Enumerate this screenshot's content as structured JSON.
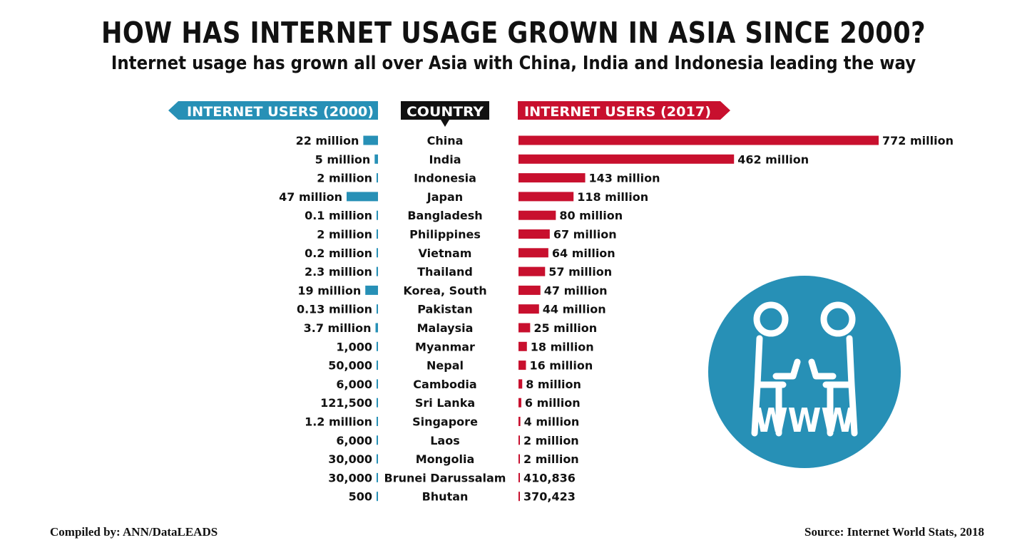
{
  "colors": {
    "users_2000": "#2790b6",
    "users_2017": "#c8102e",
    "country_header": "#111111",
    "icon": "#2790b6"
  },
  "header": {
    "title": "HOW HAS INTERNET USAGE GROWN IN ASIA SINCE 2000?",
    "subtitle": "Internet usage has grown all over Asia with China, India and Indonesia leading the way"
  },
  "footer": {
    "compiled_by": "Compiled by: ANN/DataLEADS",
    "source": "Source: Internet World Stats, 2018"
  },
  "icon_name": "www-users-icon",
  "icon_label": "WWW",
  "chart_data": {
    "type": "bar",
    "column_headers": {
      "left": "INTERNET USERS (2000)",
      "center": "COUNTRY",
      "right": "INTERNET USERS (2017)"
    },
    "unit": "million",
    "categories": [
      "China",
      "India",
      "Indonesia",
      "Japan",
      "Bangladesh",
      "Philippines",
      "Vietnam",
      "Thailand",
      "Korea, South",
      "Pakistan",
      "Malaysia",
      "Myanmar",
      "Nepal",
      "Cambodia",
      "Sri Lanka",
      "Singapore",
      "Laos",
      "Mongolia",
      "Brunei Darussalam",
      "Bhutan"
    ],
    "series": [
      {
        "name": "INTERNET USERS (2000)",
        "values": [
          22,
          5,
          2,
          47,
          0.1,
          2,
          0.2,
          2.3,
          19,
          0.13,
          3.7,
          0.001,
          0.05,
          0.006,
          0.1215,
          1.2,
          0.006,
          0.03,
          0.03,
          0.0005
        ],
        "labels": [
          "22 million",
          "5 million",
          "2 million",
          "47 million",
          "0.1 million",
          "2 million",
          "0.2 million",
          "2.3 million",
          "19 million",
          "0.13 million",
          "3.7 million",
          "1,000",
          "50,000",
          "6,000",
          "121,500",
          "1.2 million",
          "6,000",
          "30,000",
          "30,000",
          "500"
        ]
      },
      {
        "name": "INTERNET USERS (2017)",
        "values": [
          772,
          462,
          143,
          118,
          80,
          67,
          64,
          57,
          47,
          44,
          25,
          18,
          16,
          8,
          6,
          4,
          2,
          2,
          0.410836,
          0.370423
        ],
        "labels": [
          "772 million",
          "462 million",
          "143 million",
          "118 million",
          "80 million",
          "67 million",
          "64 million",
          "57 million",
          "47 million",
          "44 million",
          "25 million",
          "18 million",
          "16 million",
          "8 million",
          "6 million",
          "4 million",
          "2 million",
          "2 million",
          "410,836",
          "370,423"
        ]
      }
    ],
    "grid": false,
    "legend": "none"
  }
}
